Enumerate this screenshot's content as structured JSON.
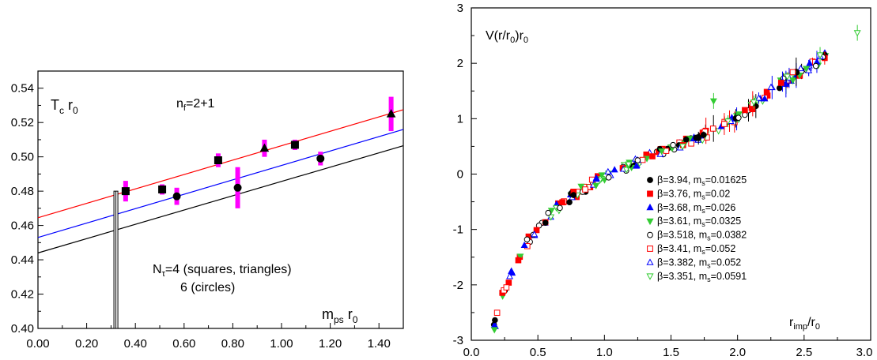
{
  "chart_data": [
    {
      "type": "scatter",
      "panel": "left",
      "annotations": {
        "ylabel": "T",
        "ylabel_sub": "c",
        "ylabel_tail": " r",
        "ylabel_tail_sub": "0",
        "flavors": "n",
        "flavors_sub": "f",
        "flavors_tail": "=2+1",
        "nt_line1": "N",
        "nt_line1_sub": "τ",
        "nt_line1_tail": "=4 (squares, triangles)",
        "nt_line2": "6 (circles)",
        "xlabel": "m",
        "xlabel_sub": "ps",
        "xlabel_tail": " r",
        "xlabel_tail_sub": "0"
      },
      "xlim": [
        0.0,
        1.5
      ],
      "ylim": [
        0.4,
        0.55
      ],
      "x_ticks": [
        "0.00",
        "0.20",
        "0.40",
        "0.60",
        "0.80",
        "1.00",
        "1.20",
        "1.40"
      ],
      "y_ticks": [
        "0.40",
        "0.42",
        "0.44",
        "0.46",
        "0.48",
        "0.50",
        "0.52",
        "0.54"
      ],
      "physical_point": {
        "x": 0.32,
        "y_min": 0.4,
        "y_max": 0.48
      },
      "colors": {
        "fit_red": "#ff0000",
        "fit_blue": "#0000ff",
        "fit_black": "#000000",
        "errorbar": "#ff00ff"
      },
      "fit_lines": [
        {
          "name": "red",
          "points": [
            [
              0.0,
              0.4645
            ],
            [
              1.5,
              0.5275
            ]
          ]
        },
        {
          "name": "blue",
          "points": [
            [
              0.0,
              0.453
            ],
            [
              1.5,
              0.516
            ]
          ]
        },
        {
          "name": "black",
          "points": [
            [
              0.0,
              0.444
            ],
            [
              1.5,
              0.5065
            ]
          ]
        }
      ],
      "points": [
        {
          "x": 0.36,
          "y": 0.48,
          "err": 0.006,
          "shape": "square"
        },
        {
          "x": 0.51,
          "y": 0.481,
          "err": 0.003,
          "shape": "square"
        },
        {
          "x": 0.74,
          "y": 0.498,
          "err": 0.004,
          "shape": "square"
        },
        {
          "x": 1.055,
          "y": 0.507,
          "err": 0.003,
          "shape": "square"
        },
        {
          "x": 0.93,
          "y": 0.505,
          "err": 0.005,
          "shape": "triangle"
        },
        {
          "x": 1.45,
          "y": 0.525,
          "err": 0.01,
          "shape": "triangle"
        },
        {
          "x": 0.57,
          "y": 0.477,
          "err": 0.005,
          "shape": "circle"
        },
        {
          "x": 0.82,
          "y": 0.482,
          "err": 0.012,
          "shape": "circle"
        },
        {
          "x": 1.16,
          "y": 0.499,
          "err": 0.004,
          "shape": "circle"
        }
      ]
    },
    {
      "type": "scatter",
      "panel": "right",
      "annotations": {
        "ylabel": "V(r/r",
        "ylabel_sub": "0",
        "ylabel_tail": ")r",
        "ylabel_tail_sub": "0",
        "xlabel": "r",
        "xlabel_sub": "imp",
        "xlabel_tail": "/r",
        "xlabel_tail_sub": "0"
      },
      "xlim": [
        0.0,
        3.0
      ],
      "ylim": [
        -3,
        3
      ],
      "x_ticks": [
        "0.0",
        "0.5",
        "1.0",
        "1.5",
        "2.0",
        "2.5",
        "3.0"
      ],
      "y_ticks": [
        "-3",
        "-2",
        "-1",
        "0",
        "1",
        "2",
        "3"
      ],
      "curve": [
        [
          0.16,
          -2.9
        ],
        [
          0.2,
          -2.45
        ],
        [
          0.25,
          -2.05
        ],
        [
          0.3,
          -1.8
        ],
        [
          0.35,
          -1.55
        ],
        [
          0.4,
          -1.3
        ],
        [
          0.5,
          -0.95
        ],
        [
          0.6,
          -0.7
        ],
        [
          0.7,
          -0.5
        ],
        [
          0.8,
          -0.33
        ],
        [
          0.9,
          -0.18
        ],
        [
          1.0,
          -0.05
        ],
        [
          1.2,
          0.18
        ],
        [
          1.4,
          0.38
        ],
        [
          1.6,
          0.56
        ],
        [
          1.8,
          0.75
        ],
        [
          2.0,
          1.0
        ],
        [
          2.2,
          1.4
        ],
        [
          2.4,
          1.75
        ],
        [
          2.6,
          2.0
        ],
        [
          2.7,
          2.3
        ]
      ],
      "series": [
        {
          "name": "β=3.94, m",
          "sub": "s",
          "tail": "=0.01625",
          "marker": "circle",
          "fill": true,
          "color": "#000000"
        },
        {
          "name": "β=3.76, m",
          "sub": "s",
          "tail": "=0.02",
          "marker": "square",
          "fill": true,
          "color": "#ff0000"
        },
        {
          "name": "β=3.68, m",
          "sub": "s",
          "tail": "=0.026",
          "marker": "triangle",
          "fill": true,
          "color": "#0000ff"
        },
        {
          "name": "β=3.61, m",
          "sub": "s",
          "tail": "=0.0325",
          "marker": "triangle-down",
          "fill": true,
          "color": "#33cc33"
        },
        {
          "name": "β=3.518, m",
          "sub": "s",
          "tail": "=0.0382",
          "marker": "circle",
          "fill": false,
          "color": "#000000"
        },
        {
          "name": "β=3.41, m",
          "sub": "s",
          "tail": "=0.052",
          "marker": "square",
          "fill": false,
          "color": "#ff0000"
        },
        {
          "name": "β=3.382, m",
          "sub": "s",
          "tail": "=0.052",
          "marker": "triangle",
          "fill": false,
          "color": "#0000ff"
        },
        {
          "name": "β=3.351, m",
          "sub": "s",
          "tail": "=0.0591",
          "marker": "triangle-down",
          "fill": false,
          "color": "#33cc33"
        }
      ],
      "extra_points": [
        {
          "x": 2.9,
          "y": 2.55,
          "series": 7
        },
        {
          "x": 1.82,
          "y": 1.32,
          "series": 3
        },
        {
          "x": 2.62,
          "y": 2.15,
          "series": 7
        }
      ]
    }
  ]
}
